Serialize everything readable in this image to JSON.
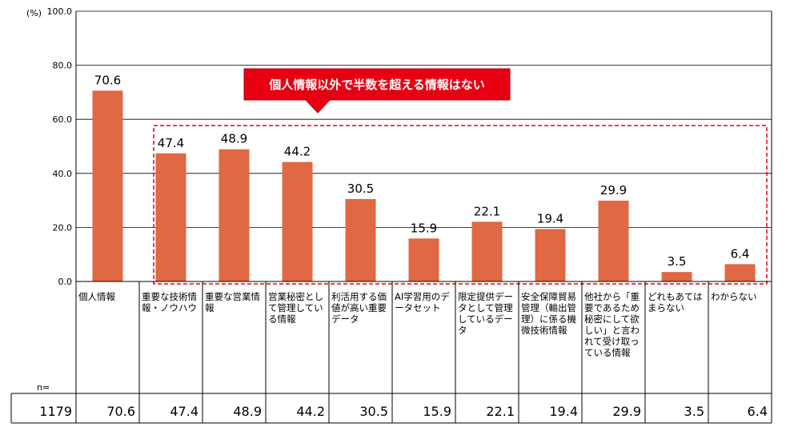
{
  "chart_data": {
    "type": "bar",
    "unit_label": "(%)",
    "categories": [
      "個人情報",
      "重要な技術情報・ノウハウ",
      "重要な営業情報",
      "営業秘密として管理している情報",
      "利活用する価値が高い重要データ",
      "AI学習用のデータセット",
      "限定提供データとして管理しているデータ",
      "安全保障貿易管理（輸出管理）に係る機微技術情報",
      "他社から「重要であるため秘密にして欲しい」と言われて受け取っている情報",
      "どれもあてはまらない",
      "わからない"
    ],
    "values": [
      70.6,
      47.4,
      48.9,
      44.2,
      30.5,
      15.9,
      22.1,
      19.4,
      29.9,
      3.5,
      6.4
    ],
    "value_labels": [
      "70.6",
      "47.4",
      "48.9",
      "44.2",
      "30.5",
      "15.9",
      "22.1",
      "19.4",
      "29.9",
      "3.5",
      "6.4"
    ],
    "ylim": [
      0,
      100
    ],
    "yticks": [
      "0.0",
      "20.0",
      "40.0",
      "60.0",
      "80.0",
      "100.0"
    ],
    "grid": true,
    "bar_color": "#E06843",
    "annotation": "個人情報以外で半数を超える情報はない",
    "annotation_color": "#E60012"
  },
  "table": {
    "n_label": "n=",
    "n_value": "1179",
    "row_values": [
      "70.6",
      "47.4",
      "48.9",
      "44.2",
      "30.5",
      "15.9",
      "22.1",
      "19.4",
      "29.9",
      "3.5",
      "6.4"
    ]
  }
}
